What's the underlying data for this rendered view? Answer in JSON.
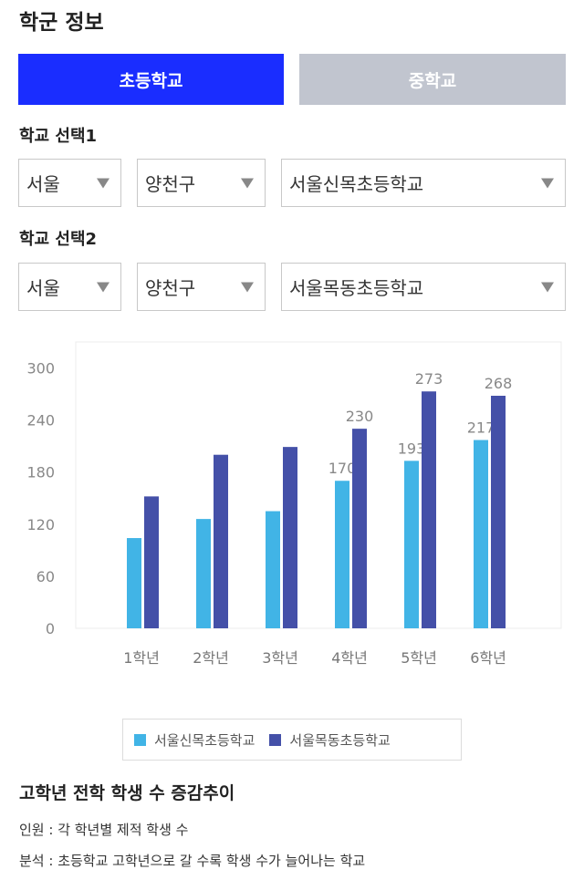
{
  "page": {
    "title": "학군 정보"
  },
  "tabs": [
    {
      "label": "초등학교",
      "active": true
    },
    {
      "label": "중학교",
      "active": false
    }
  ],
  "selection1": {
    "label": "학교 선택1",
    "city": "서울",
    "district": "양천구",
    "school": "서울신목초등학교"
  },
  "selection2": {
    "label": "학교 선택2",
    "city": "서울",
    "district": "양천구",
    "school": "서울목동초등학교"
  },
  "colors": {
    "accent": "#1a2dff",
    "series1": "#41b4e6",
    "series2": "#4450a8",
    "tab_inactive": "#c1c5cf"
  },
  "chart_data": {
    "type": "bar",
    "categories": [
      "1학년",
      "2학년",
      "3학년",
      "4학년",
      "5학년",
      "6학년"
    ],
    "series": [
      {
        "name": "서울신목초등학교",
        "values": [
          104,
          126,
          135,
          170,
          193,
          217
        ],
        "labels": [
          "",
          "",
          "",
          "170",
          "193",
          "217"
        ]
      },
      {
        "name": "서울목동초등학교",
        "values": [
          152,
          200,
          209,
          230,
          273,
          268
        ],
        "labels": [
          "",
          "",
          "",
          "230",
          "273",
          "268"
        ]
      }
    ],
    "yticks": [
      0,
      60,
      120,
      180,
      240,
      300
    ],
    "ylim": [
      0,
      330
    ],
    "legend_position": "bottom"
  },
  "info": {
    "title": "고학년 전학 학생 수 증감추이",
    "line1": "인원 : 각 학년별 제적 학생 수",
    "line2": "분석 : 초등학교 고학년으로 갈 수록 학생 수가 늘어나는 학교"
  }
}
